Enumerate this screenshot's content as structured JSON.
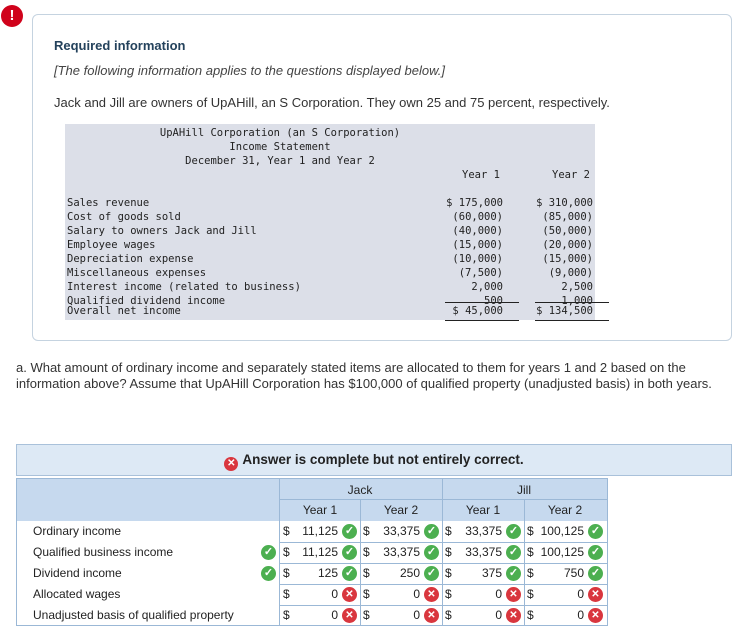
{
  "header": {
    "alert_icon": "!",
    "title": "Required information",
    "note": "[The following information applies to the questions displayed below.]",
    "intro": "Jack and Jill are owners of UpAHill, an S Corporation. They own 25 and 75 percent, respectively."
  },
  "statement": {
    "company": "UpAHill Corporation (an S Corporation)",
    "title": "Income Statement",
    "period": "December 31, Year 1 and Year 2",
    "col1": "Year 1",
    "col2": "Year 2",
    "rows": [
      {
        "label": "Sales revenue",
        "y1": "$ 175,000",
        "y2": "$ 310,000"
      },
      {
        "label": "Cost of goods sold",
        "y1": "(60,000)",
        "y2": "(85,000)"
      },
      {
        "label": "Salary to owners Jack and Jill",
        "y1": "(40,000)",
        "y2": "(50,000)"
      },
      {
        "label": "Employee wages",
        "y1": "(15,000)",
        "y2": "(20,000)"
      },
      {
        "label": "Depreciation expense",
        "y1": "(10,000)",
        "y2": "(15,000)"
      },
      {
        "label": "Miscellaneous expenses",
        "y1": "(7,500)",
        "y2": "(9,000)"
      },
      {
        "label": "Interest income (related to business)",
        "y1": "2,000",
        "y2": "2,500"
      },
      {
        "label": "Qualified dividend income",
        "y1": "500",
        "y2": "1,000"
      }
    ],
    "total": {
      "label": "Overall net income",
      "y1": "$ 45,000",
      "y2": "$ 134,500"
    }
  },
  "question": "a. What amount of ordinary income and separately stated items are allocated to them for years 1 and 2 based on the information above? Assume that UpAHill Corporation has $100,000 of qualified property (unadjusted basis) in both years.",
  "answer": {
    "banner": "Answer is complete but not entirely correct.",
    "jack": "Jack",
    "jill": "Jill",
    "year1": "Year 1",
    "year2": "Year 2",
    "rows": [
      {
        "label": "Ordinary income",
        "pre": "",
        "jack_y1": "11,125",
        "jack_y2": "33,375",
        "jill_y1": "33,375",
        "jill_y2": "100,125",
        "status": [
          "ok",
          "ok",
          "ok",
          "ok"
        ]
      },
      {
        "label": "Qualified business income",
        "pre": "ok",
        "jack_y1": "11,125",
        "jack_y2": "33,375",
        "jill_y1": "33,375",
        "jill_y2": "100,125",
        "status": [
          "ok",
          "ok",
          "ok",
          "ok"
        ]
      },
      {
        "label": "Dividend income",
        "pre": "ok",
        "jack_y1": "125",
        "jack_y2": "250",
        "jill_y1": "375",
        "jill_y2": "750",
        "status": [
          "ok",
          "ok",
          "ok",
          "ok"
        ]
      },
      {
        "label": "Allocated wages",
        "pre": "",
        "jack_y1": "0",
        "jack_y2": "0",
        "jill_y1": "0",
        "jill_y2": "0",
        "status": [
          "bad",
          "bad",
          "bad",
          "bad"
        ]
      },
      {
        "label": "Unadjusted basis of qualified property",
        "pre": "",
        "jack_y1": "0",
        "jack_y2": "0",
        "jill_y1": "0",
        "jill_y2": "0",
        "status": [
          "bad",
          "bad",
          "bad",
          "bad"
        ]
      }
    ],
    "dollar": "$",
    "check_icon": "✓",
    "x_icon": "✕"
  },
  "colors": {
    "alert": "#d0021b",
    "correct": "#4caf50",
    "incorrect": "#d9363e",
    "header_band": "#c6d9ee",
    "statement_bg": "#dcdfe8"
  }
}
